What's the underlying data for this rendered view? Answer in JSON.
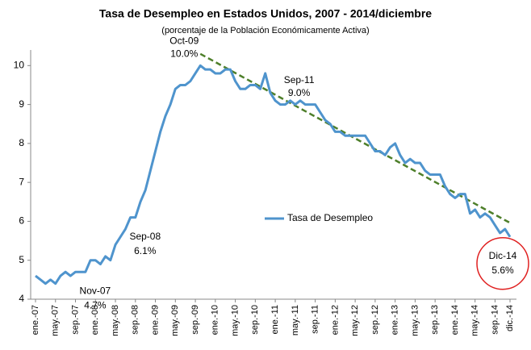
{
  "chart_data": {
    "type": "line",
    "title": "Tasa de Desempleo en Estados Unidos, 2007 - 2014/diciembre",
    "subtitle": "(porcentaje de la Población Económicamente Activa)",
    "categories": [
      "ene.-07",
      null,
      null,
      null,
      "may.-07",
      null,
      null,
      null,
      "sep.-07",
      null,
      null,
      null,
      "ene.-08",
      null,
      null,
      null,
      "may.-08",
      null,
      null,
      null,
      "sep.-08",
      null,
      null,
      null,
      "ene.-09",
      null,
      null,
      null,
      "may.-09",
      null,
      null,
      null,
      "sep.-09",
      null,
      null,
      null,
      "ene.-10",
      null,
      null,
      null,
      "may.-10",
      null,
      null,
      null,
      "sep.-10",
      null,
      null,
      null,
      "ene.-11",
      null,
      null,
      null,
      "may.-11",
      null,
      null,
      null,
      "sep.-11",
      null,
      null,
      null,
      "ene.-12",
      null,
      null,
      null,
      "may.-12",
      null,
      null,
      null,
      "sep.-12",
      null,
      null,
      null,
      "ene.-13",
      null,
      null,
      null,
      "may.-13",
      null,
      null,
      null,
      "sep.-13",
      null,
      null,
      null,
      "ene.-14",
      null,
      null,
      null,
      "may.-14",
      null,
      null,
      null,
      "sep.-14",
      null,
      null,
      "dic.-14"
    ],
    "series": [
      {
        "name": "Tasa de Desempleo",
        "color": "#4f94cd",
        "values": [
          4.6,
          4.5,
          4.4,
          4.5,
          4.4,
          4.6,
          4.7,
          4.6,
          4.7,
          4.7,
          4.7,
          5.0,
          5.0,
          4.9,
          5.1,
          5.0,
          5.4,
          5.6,
          5.8,
          6.1,
          6.1,
          6.5,
          6.8,
          7.3,
          7.8,
          8.3,
          8.7,
          9.0,
          9.4,
          9.5,
          9.5,
          9.6,
          9.8,
          10.0,
          9.9,
          9.9,
          9.8,
          9.8,
          9.9,
          9.9,
          9.6,
          9.4,
          9.4,
          9.5,
          9.5,
          9.4,
          9.8,
          9.3,
          9.1,
          9.0,
          9.0,
          9.1,
          9.0,
          9.1,
          9.0,
          9.0,
          9.0,
          8.8,
          8.6,
          8.5,
          8.3,
          8.3,
          8.2,
          8.2,
          8.2,
          8.2,
          8.2,
          8.0,
          7.8,
          7.8,
          7.7,
          7.9,
          8.0,
          7.7,
          7.5,
          7.6,
          7.5,
          7.5,
          7.3,
          7.2,
          7.2,
          7.2,
          6.9,
          6.7,
          6.6,
          6.7,
          6.7,
          6.2,
          6.3,
          6.1,
          6.2,
          6.1,
          5.9,
          5.7,
          5.8,
          5.6
        ],
        "point_labels": [
          null,
          null,
          null,
          null,
          null,
          null,
          null,
          null,
          null,
          null,
          "Nov-07",
          null,
          null,
          null,
          null,
          null,
          null,
          null,
          null,
          null,
          "Sep-08",
          null,
          null,
          null,
          null,
          null,
          null,
          null,
          null,
          null,
          null,
          null,
          null,
          "Oct-09",
          null,
          null,
          null,
          null,
          null,
          null,
          null,
          null,
          null,
          null,
          null,
          null,
          null,
          null,
          null,
          null,
          null,
          null,
          null,
          null,
          null,
          null,
          "Sep-11",
          null,
          null,
          null,
          null,
          null,
          null,
          null,
          null,
          null,
          null,
          null,
          null,
          null,
          null,
          null,
          null,
          null,
          null,
          null,
          null,
          null,
          null,
          null,
          null,
          null,
          null,
          null,
          null,
          null,
          null,
          null,
          null,
          null,
          null,
          null,
          null,
          null,
          null,
          "Dic-14"
        ],
        "value_labels": [
          null,
          null,
          null,
          null,
          null,
          null,
          null,
          null,
          null,
          null,
          "4.7%",
          null,
          null,
          null,
          null,
          null,
          null,
          null,
          null,
          null,
          "6.1%",
          null,
          null,
          null,
          null,
          null,
          null,
          null,
          null,
          null,
          null,
          null,
          null,
          "10.0%",
          null,
          null,
          null,
          null,
          null,
          null,
          null,
          null,
          null,
          null,
          null,
          null,
          null,
          null,
          null,
          null,
          null,
          null,
          null,
          null,
          null,
          null,
          "9.0%",
          null,
          null,
          null,
          null,
          null,
          null,
          null,
          null,
          null,
          null,
          null,
          null,
          null,
          null,
          null,
          null,
          null,
          null,
          null,
          null,
          null,
          null,
          null,
          null,
          null,
          null,
          null,
          null,
          null,
          null,
          null,
          null,
          null,
          null,
          null,
          null,
          null,
          null,
          "5.6%"
        ]
      }
    ],
    "trendline": {
      "color": "#4e7f2a",
      "values": [
        null,
        null,
        null,
        null,
        null,
        null,
        null,
        null,
        null,
        null,
        null,
        null,
        null,
        null,
        null,
        null,
        null,
        null,
        null,
        null,
        null,
        null,
        null,
        null,
        null,
        null,
        null,
        null,
        null,
        null,
        null,
        null,
        null,
        10.3,
        10.23,
        10.16,
        10.09,
        10.02,
        9.95,
        9.88,
        9.81,
        9.74,
        9.67,
        9.6,
        9.53,
        9.46,
        9.39,
        9.32,
        9.25,
        9.18,
        9.11,
        9.04,
        8.97,
        8.9,
        8.83,
        8.76,
        8.69,
        8.62,
        8.55,
        8.48,
        8.41,
        8.34,
        8.27,
        8.2,
        8.13,
        8.06,
        7.99,
        7.92,
        7.85,
        7.78,
        7.71,
        7.64,
        7.57,
        7.5,
        7.43,
        7.36,
        7.29,
        7.22,
        7.15,
        7.08,
        7.01,
        6.94,
        6.87,
        6.8,
        6.73,
        6.66,
        6.59,
        6.52,
        6.45,
        6.38,
        6.31,
        6.24,
        6.17,
        6.1,
        6.03,
        5.96
      ]
    },
    "highlight_color": "#e02020",
    "ylim": [
      4,
      10.4
    ],
    "yticks": [
      4,
      5,
      6,
      7,
      8,
      9,
      10
    ]
  }
}
